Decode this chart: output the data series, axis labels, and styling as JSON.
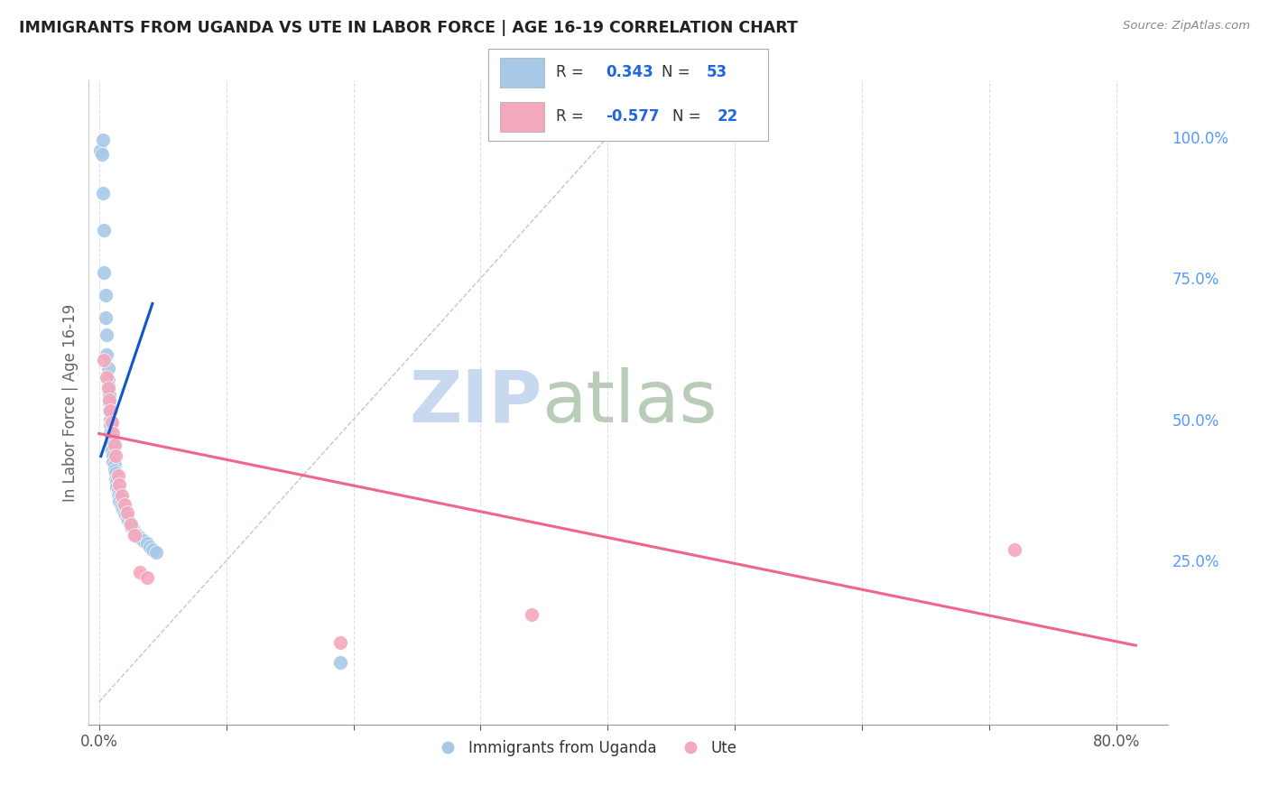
{
  "title": "IMMIGRANTS FROM UGANDA VS UTE IN LABOR FORCE | AGE 16-19 CORRELATION CHART",
  "source": "Source: ZipAtlas.com",
  "ylabel": "In Labor Force | Age 16-19",
  "right_yticks": [
    0.0,
    0.25,
    0.5,
    0.75,
    1.0
  ],
  "right_yticklabels": [
    "",
    "25.0%",
    "50.0%",
    "75.0%",
    "100.0%"
  ],
  "xtick_positions": [
    0.0,
    0.1,
    0.2,
    0.3,
    0.4,
    0.5,
    0.6,
    0.7,
    0.8
  ],
  "xticklabels": [
    "0.0%",
    "",
    "",
    "",
    "",
    "",
    "",
    "",
    "80.0%"
  ],
  "xlim": [
    -0.008,
    0.84
  ],
  "ylim": [
    -0.04,
    1.1
  ],
  "blue_color": "#a8c8e8",
  "pink_color": "#f4a8bc",
  "blue_line_color": "#1155cc",
  "pink_line_color": "#ee6688",
  "diag_line_color": "#aabbcc",
  "watermark": "ZIPatlas",
  "watermark_zip_color": "#c8d8f0",
  "watermark_atlas_color": "#c8d8c8",
  "blue_scatter_x": [
    0.001,
    0.002,
    0.003,
    0.004,
    0.004,
    0.005,
    0.005,
    0.006,
    0.006,
    0.007,
    0.007,
    0.007,
    0.008,
    0.008,
    0.008,
    0.009,
    0.009,
    0.009,
    0.01,
    0.01,
    0.01,
    0.011,
    0.011,
    0.012,
    0.012,
    0.013,
    0.013,
    0.014,
    0.014,
    0.015,
    0.015,
    0.016,
    0.016,
    0.017,
    0.018,
    0.019,
    0.02,
    0.021,
    0.022,
    0.023,
    0.024,
    0.025,
    0.027,
    0.028,
    0.03,
    0.032,
    0.035,
    0.038,
    0.04,
    0.042,
    0.045,
    0.19,
    0.003
  ],
  "blue_scatter_y": [
    0.975,
    0.97,
    0.9,
    0.835,
    0.76,
    0.72,
    0.68,
    0.65,
    0.615,
    0.59,
    0.57,
    0.56,
    0.545,
    0.53,
    0.515,
    0.5,
    0.49,
    0.475,
    0.465,
    0.455,
    0.445,
    0.435,
    0.425,
    0.42,
    0.41,
    0.405,
    0.395,
    0.39,
    0.38,
    0.375,
    0.365,
    0.36,
    0.355,
    0.35,
    0.345,
    0.34,
    0.335,
    0.33,
    0.325,
    0.32,
    0.315,
    0.31,
    0.305,
    0.3,
    0.295,
    0.29,
    0.285,
    0.28,
    0.275,
    0.27,
    0.265,
    0.07,
    0.995
  ],
  "pink_scatter_x": [
    0.004,
    0.006,
    0.007,
    0.008,
    0.009,
    0.01,
    0.011,
    0.012,
    0.013,
    0.015,
    0.016,
    0.018,
    0.02,
    0.022,
    0.025,
    0.028,
    0.032,
    0.038,
    0.19,
    0.34,
    0.72
  ],
  "pink_scatter_y": [
    0.605,
    0.575,
    0.555,
    0.535,
    0.515,
    0.495,
    0.475,
    0.455,
    0.435,
    0.4,
    0.385,
    0.365,
    0.35,
    0.335,
    0.315,
    0.295,
    0.23,
    0.22,
    0.105,
    0.155,
    0.27
  ],
  "blue_line_x": [
    0.0015,
    0.042
  ],
  "blue_line_y": [
    0.435,
    0.705
  ],
  "pink_line_x": [
    0.0,
    0.815
  ],
  "pink_line_y": [
    0.475,
    0.1
  ],
  "diag_line_x": [
    0.0,
    0.42
  ],
  "diag_line_y": [
    0.0,
    1.05
  ]
}
